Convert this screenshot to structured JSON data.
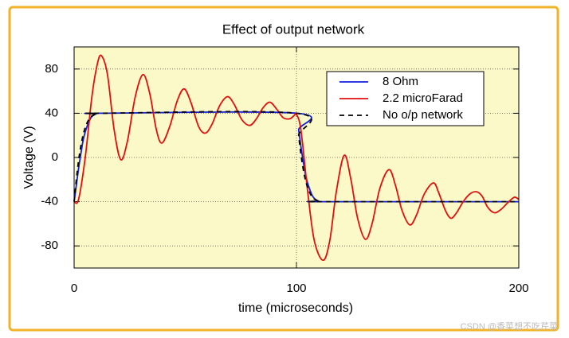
{
  "chart_data": {
    "type": "line",
    "title": "Effect of output network",
    "xlabel": "time (microseconds)",
    "ylabel": "Voltage (V)",
    "xlim": [
      0,
      200
    ],
    "xticks": [
      0,
      100,
      200
    ],
    "ylim": [
      -100,
      100
    ],
    "yticks": [
      -80,
      -40,
      0,
      40,
      80
    ],
    "grid": true,
    "vline": 100,
    "legend": "upper right",
    "background": "#fbf9c8",
    "series": [
      {
        "name": "8 Ohm",
        "color": "#1020e0",
        "linestyle": "solid",
        "x": [
          0,
          1,
          2,
          3,
          4,
          5,
          6,
          7,
          8,
          9,
          10,
          12,
          100,
          101,
          102,
          103,
          104,
          105,
          106,
          107,
          108,
          109,
          110,
          112,
          200
        ],
        "values": [
          -40,
          -25,
          -10,
          3,
          15,
          23,
          29,
          34,
          37,
          38.5,
          39.5,
          40,
          40,
          25,
          10,
          -3,
          -15,
          -23,
          -29,
          -34,
          -37,
          -38.5,
          -39.5,
          -40,
          -40
        ]
      },
      {
        "name": "2.2 microFarad",
        "color": "#e01010",
        "linestyle": "solid",
        "x": [
          0,
          2,
          5,
          8,
          10.5,
          12.3,
          15,
          18,
          21,
          24,
          27.5,
          31,
          34,
          37,
          39.5,
          43,
          46.5,
          49.5,
          52.5,
          56,
          59,
          62,
          65.5,
          69,
          72,
          75.5,
          79,
          82,
          85,
          88,
          91,
          94,
          97,
          99,
          100,
          102,
          105,
          108,
          112,
          115,
          118,
          121.5,
          124.5,
          127.5,
          131,
          134,
          137.5,
          141.6,
          144.5,
          147.5,
          151,
          154,
          157.5,
          161.6,
          164,
          167,
          169.5,
          172,
          175,
          178,
          181,
          183.5,
          186,
          189,
          192,
          195,
          198,
          200
        ],
        "values": [
          -40,
          -38,
          0,
          55,
          85,
          92,
          75,
          25,
          -2,
          15,
          55,
          75,
          58,
          25,
          13,
          28,
          52,
          62,
          50,
          28,
          22,
          30,
          47,
          55,
          48,
          34,
          29,
          35,
          45,
          50,
          44,
          36,
          35,
          38,
          39,
          25,
          -30,
          -75,
          -93,
          -75,
          -30,
          2,
          -20,
          -55,
          -74,
          -60,
          -28,
          -11,
          -25,
          -48,
          -61,
          -52,
          -33,
          -23,
          -32,
          -48,
          -55,
          -50,
          -40,
          -33,
          -31,
          -35,
          -45,
          -50,
          -47,
          -41,
          -36,
          -38
        ]
      },
      {
        "name": "No o/p network",
        "color": "#000000",
        "linestyle": "dashed",
        "x": [
          0,
          1,
          2,
          3,
          4,
          5,
          6,
          7,
          8,
          10,
          12,
          100,
          101,
          102,
          103,
          104,
          105,
          106,
          107,
          108,
          110,
          112,
          200
        ],
        "values": [
          -40,
          -20,
          -3,
          10,
          20,
          27,
          32,
          35.5,
          37.5,
          39.5,
          40,
          40,
          20,
          3,
          -10,
          -20,
          -27,
          -32,
          -35.5,
          -37.5,
          -39.5,
          -40,
          -40
        ]
      }
    ]
  },
  "watermark": "CSDN @香菜想不吃芹菜"
}
